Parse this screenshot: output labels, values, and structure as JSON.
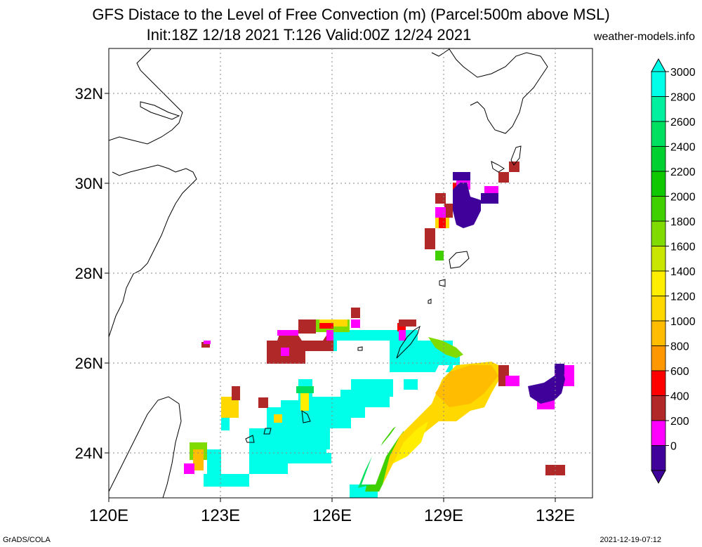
{
  "header": {
    "title_line1": "GFS Distace to the Level of Free Convection (m) (Parcel:500m above MSL)",
    "title_line2": "Init:18Z 12/18 2021 T:126 Valid:00Z 12/24 2021",
    "site": "weather-models.info"
  },
  "map": {
    "lon_range": [
      120,
      133
    ],
    "lat_range": [
      23,
      33
    ],
    "lon_ticks": [
      120,
      123,
      126,
      129,
      132
    ],
    "lat_ticks": [
      24,
      26,
      28,
      30,
      32
    ],
    "lon_labels": [
      "120E",
      "123E",
      "126E",
      "129E",
      "132E"
    ],
    "lat_labels": [
      "24N",
      "26N",
      "28N",
      "30N",
      "32N"
    ],
    "grid": true
  },
  "colorbar": {
    "labels": [
      "3000",
      "2800",
      "2600",
      "2400",
      "2200",
      "2000",
      "1800",
      "1600",
      "1400",
      "1200",
      "1000",
      "800",
      "600",
      "400",
      "200",
      "0"
    ],
    "colors": [
      "#00ffe8",
      "#00f0a0",
      "#00e060",
      "#00d030",
      "#10c800",
      "#40d000",
      "#80dc00",
      "#c8e600",
      "#ffee00",
      "#ffd800",
      "#ffbc00",
      "#ff9800",
      "#ff0000",
      "#b02828",
      "#ff00ff",
      "#40009a"
    ],
    "extend_top_color": "#00ffe8",
    "extend_bottom_color": "#40009a"
  },
  "footer": {
    "left": "GrADS/COLA",
    "right": "2021-12-19-07:12"
  }
}
